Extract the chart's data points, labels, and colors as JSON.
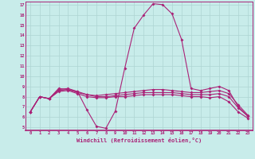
{
  "xlabel": "Windchill (Refroidissement éolien,°C)",
  "x_ticks": [
    0,
    1,
    2,
    3,
    4,
    5,
    6,
    7,
    8,
    9,
    10,
    11,
    12,
    13,
    14,
    15,
    16,
    17,
    18,
    19,
    20,
    21,
    22,
    23
  ],
  "ylim": [
    4.7,
    17.3
  ],
  "xlim": [
    -0.5,
    23.5
  ],
  "y_ticks": [
    5,
    6,
    7,
    8,
    9,
    10,
    11,
    12,
    13,
    14,
    15,
    16,
    17
  ],
  "background_color": "#c8ecea",
  "grid_color": "#aed4d2",
  "line_color": "#aa2277",
  "line1": [
    6.5,
    8.0,
    7.8,
    8.8,
    8.7,
    8.5,
    6.7,
    5.1,
    4.9,
    6.6,
    10.8,
    14.7,
    16.0,
    17.1,
    17.0,
    16.1,
    13.6,
    8.8,
    8.6,
    8.8,
    9.0,
    8.6,
    7.0,
    6.1
  ],
  "line2": [
    6.5,
    8.0,
    7.8,
    8.7,
    8.8,
    8.5,
    8.2,
    8.1,
    8.2,
    8.3,
    8.4,
    8.5,
    8.6,
    8.7,
    8.7,
    8.6,
    8.5,
    8.4,
    8.4,
    8.5,
    8.6,
    8.3,
    7.2,
    6.2
  ],
  "line3": [
    6.5,
    8.0,
    7.8,
    8.6,
    8.7,
    8.4,
    8.2,
    8.0,
    8.0,
    8.1,
    8.2,
    8.3,
    8.4,
    8.4,
    8.4,
    8.4,
    8.3,
    8.2,
    8.2,
    8.2,
    8.3,
    8.0,
    6.9,
    6.1
  ],
  "line4": [
    6.5,
    8.0,
    7.8,
    8.5,
    8.6,
    8.3,
    8.0,
    7.9,
    7.9,
    8.0,
    8.0,
    8.1,
    8.2,
    8.2,
    8.2,
    8.2,
    8.1,
    8.0,
    8.0,
    7.9,
    8.0,
    7.5,
    6.5,
    5.9
  ]
}
